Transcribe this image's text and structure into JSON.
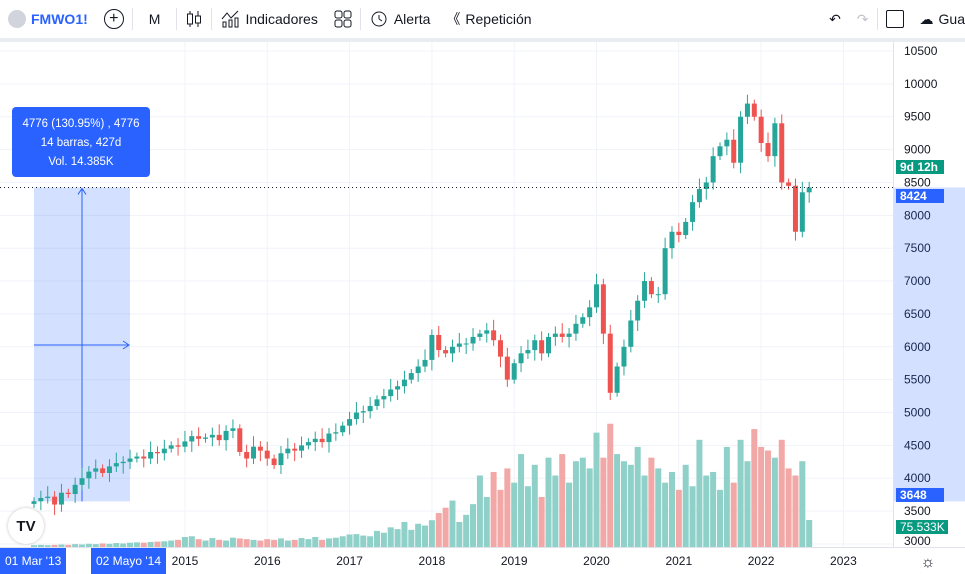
{
  "toolbar": {
    "symbol": "FMWO1!",
    "interval": "M",
    "indicators": "Indicadores",
    "alert": "Alerta",
    "replay": "Repetición",
    "save": "Gua",
    "icons": [
      "symbol-logo-icon",
      "add-symbol-icon",
      "candles-icon",
      "indicators-icon",
      "templates-icon",
      "alert-icon",
      "replay-icon",
      "undo-icon",
      "redo-icon",
      "fullscreen-icon",
      "cloud-save-icon"
    ]
  },
  "measure": {
    "line1": "4776 (130.95%) , 4776",
    "line2": "14 barras, 427d",
    "line3": "Vol. 14.385K",
    "start_date": "01 Mar '13",
    "end_date": "02 Mayo '14",
    "start_price": "3648",
    "start_volume": "75.533K"
  },
  "price_labels": {
    "last": "8424",
    "countdown": "9d 12h"
  },
  "colors": {
    "up": "#26a69a",
    "down": "#ef5350",
    "accent": "#2962ff",
    "vol_up": "#8fd0c8",
    "vol_down": "#f2a8a6"
  },
  "chart_data": {
    "type": "candlestick",
    "interval": "monthly",
    "start": "2013-03",
    "end": "2022-08",
    "ylim": [
      3000,
      10500
    ],
    "y_ticks": [
      "10500",
      "10000",
      "9500",
      "9000",
      "8500",
      "8000",
      "7500",
      "7000",
      "6500",
      "6000",
      "5500",
      "5000",
      "4500",
      "4000",
      "3500",
      "3000"
    ],
    "x_ticks": [
      "2015",
      "2016",
      "2017",
      "2018",
      "2019",
      "2020",
      "2021",
      "2022",
      "2023"
    ],
    "close": [
      3650,
      3700,
      3720,
      3600,
      3780,
      3760,
      3900,
      4000,
      4100,
      4150,
      4080,
      4180,
      4230,
      4250,
      4300,
      4330,
      4300,
      4400,
      4380,
      4450,
      4500,
      4480,
      4560,
      4640,
      4600,
      4620,
      4660,
      4580,
      4720,
      4760,
      4400,
      4300,
      4480,
      4420,
      4300,
      4200,
      4380,
      4450,
      4420,
      4500,
      4550,
      4600,
      4550,
      4680,
      4700,
      4800,
      4900,
      5000,
      5020,
      5100,
      5200,
      5250,
      5350,
      5400,
      5500,
      5600,
      5700,
      5800,
      6180,
      5950,
      5900,
      6000,
      6050,
      6050,
      6150,
      6200,
      6250,
      6100,
      5850,
      5500,
      5750,
      5900,
      5950,
      6100,
      5900,
      6150,
      6200,
      6150,
      6200,
      6350,
      6450,
      6600,
      6950,
      6200,
      5300,
      5700,
      6000,
      6400,
      6700,
      7000,
      6800,
      6800,
      7500,
      7750,
      7700,
      7900,
      8200,
      8400,
      8500,
      8900,
      9050,
      9150,
      8800,
      9500,
      9700,
      9500,
      9100,
      8900,
      9400,
      8500,
      8450,
      7750,
      8350,
      8424
    ],
    "volume_k": [
      5,
      6,
      5,
      6,
      7,
      6,
      8,
      7,
      9,
      8,
      10,
      9,
      11,
      10,
      12,
      13,
      12,
      14,
      15,
      16,
      18,
      20,
      28,
      30,
      22,
      18,
      25,
      20,
      18,
      26,
      24,
      22,
      20,
      18,
      22,
      20,
      24,
      18,
      20,
      25,
      22,
      28,
      20,
      24,
      26,
      30,
      35,
      36,
      32,
      30,
      45,
      40,
      55,
      50,
      70,
      48,
      65,
      60,
      75,
      95,
      110,
      130,
      70,
      90,
      120,
      200,
      140,
      210,
      160,
      220,
      180,
      260,
      170,
      230,
      140,
      250,
      200,
      260,
      180,
      240,
      250,
      220,
      320,
      250,
      345,
      260,
      240,
      230,
      280,
      200,
      250,
      220,
      180,
      210,
      160,
      230,
      170,
      300,
      200,
      210,
      160,
      280,
      180,
      300,
      240,
      330,
      280,
      270,
      250,
      300,
      220,
      200,
      240,
      75.533
    ]
  }
}
